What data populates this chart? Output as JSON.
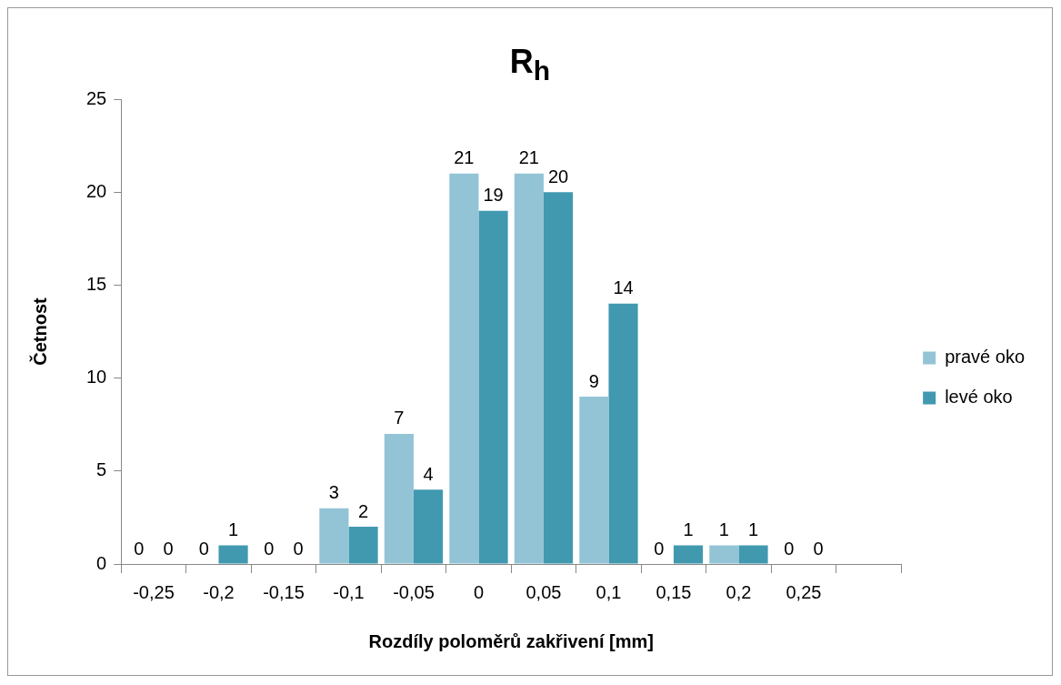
{
  "chart_data": {
    "type": "bar",
    "title": "R$_{h}$",
    "xlabel": "Rozdíly poloměrů zakřivení [mm]",
    "ylabel": "Četnost",
    "categories": [
      "-0,25",
      "-0,2",
      "-0,15",
      "-0,1",
      "-0,05",
      "0",
      "0,05",
      "0,1",
      "0,15",
      "0,2",
      "0,25",
      null
    ],
    "series": [
      {
        "name": "pravé oko",
        "color": "#93c4d6",
        "values": [
          0,
          0,
          0,
          3,
          7,
          21,
          21,
          9,
          0,
          1,
          0,
          null
        ]
      },
      {
        "name": "levé oko",
        "color": "#4199b0",
        "values": [
          0,
          1,
          0,
          2,
          4,
          19,
          20,
          14,
          1,
          1,
          0,
          null
        ]
      }
    ],
    "ylim": [
      0,
      25
    ],
    "yticks": [
      0,
      5,
      10,
      15,
      20,
      25
    ],
    "grid": false,
    "legend": "right",
    "data_labels": true
  }
}
